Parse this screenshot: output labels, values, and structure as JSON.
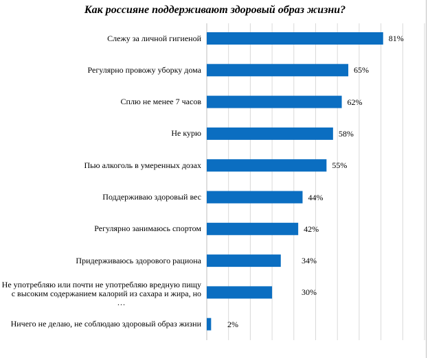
{
  "chart_data": {
    "type": "bar",
    "orientation": "horizontal",
    "title": "Как россияне поддерживают здоровый образ жизни?",
    "categories": [
      [
        "Слежу за личной гигиеной"
      ],
      [
        "Регулярно провожу уборку дома"
      ],
      [
        "Сплю не менее 7 часов"
      ],
      [
        "Не курю"
      ],
      [
        "Пью алкоголь в умеренных дозах"
      ],
      [
        "Поддерживаю здоровый вес"
      ],
      [
        "Регулярно занимаюсь спортом"
      ],
      [
        "Придерживаюсь здорового рациона"
      ],
      [
        "Не употребляю или почти не употребляю вредную пищу",
        "с высоким содержанием калорий из сахара и жира, но",
        "…"
      ],
      [
        "Ничего не делаю, не соблюдаю здоровый образ жизни"
      ]
    ],
    "values": [
      81,
      65,
      62,
      58,
      55,
      44,
      42,
      34,
      30,
      2
    ],
    "value_labels": [
      "81%",
      "65%",
      "62%",
      "58%",
      "55%",
      "44%",
      "42%",
      "34%",
      "30%",
      "2%"
    ],
    "xlim": [
      0,
      100
    ],
    "grid": true,
    "bar_color": "#0b6ec1",
    "grid_color": "#d9d9d9"
  }
}
